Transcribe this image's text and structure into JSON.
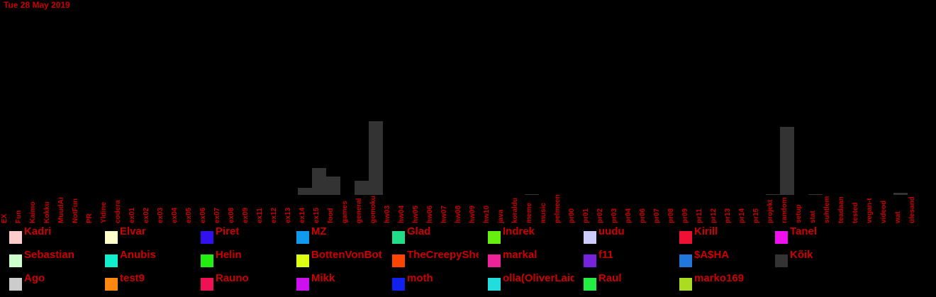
{
  "date": "Tue 28 May 2019",
  "chart_data": {
    "type": "bar",
    "stacked": true,
    "categories": [
      "EX",
      "Fun",
      "Kaimo",
      "Kokku",
      "MuudAi",
      "NotFun",
      "PR",
      "Yldine",
      "codera",
      "ex01",
      "ex02",
      "ex03",
      "ex04",
      "ex05",
      "ex06",
      "ex07",
      "ex08",
      "ex09",
      "ex11",
      "ex12",
      "ex13",
      "ex14",
      "ex15",
      "food",
      "games",
      "general",
      "gomoku",
      "hw03",
      "hw04",
      "hw05",
      "hw06",
      "hw07",
      "hw08",
      "hw09",
      "hw10",
      "java",
      "koraldu",
      "meme",
      "music",
      "pelmeen",
      "pr00",
      "pr01",
      "pr02",
      "pr03",
      "pr04",
      "pr06",
      "pr07",
      "pr08",
      "pr09",
      "pr11",
      "pr12",
      "pr13",
      "pr14",
      "pr15",
      "projekt",
      "random",
      "setup",
      "stat",
      "suhtlem",
      "teadaan",
      "tested",
      "vegan-t",
      "videod",
      "wat",
      "ülesand"
    ],
    "series": [
      {
        "name": "Kõik",
        "color": "#333333",
        "values": [
          0,
          0,
          0,
          0,
          0,
          0,
          0,
          0,
          0,
          0,
          0,
          0,
          0,
          0,
          0,
          0,
          0,
          0,
          0,
          0,
          0,
          10,
          38,
          26,
          0,
          20,
          104,
          0,
          0,
          0,
          0,
          0,
          0,
          0,
          0,
          0,
          0,
          1,
          0,
          0,
          0,
          0,
          0,
          0,
          0,
          0,
          0,
          0,
          0,
          0,
          0,
          0,
          0,
          0,
          1,
          96,
          0,
          1,
          0,
          0,
          0,
          0,
          0,
          3,
          0
        ]
      }
    ],
    "ylim": [
      0,
      115
    ]
  },
  "legend": [
    {
      "name": "Kadri",
      "color": "#ffcccc"
    },
    {
      "name": "Elvar",
      "color": "#ffffcc"
    },
    {
      "name": "Piret",
      "color": "#3311ee"
    },
    {
      "name": "MZ",
      "color": "#1199ee"
    },
    {
      "name": "Glad",
      "color": "#22dd88"
    },
    {
      "name": "Indrek",
      "color": "#66ee11"
    },
    {
      "name": "uudu",
      "color": "#ccccff"
    },
    {
      "name": "Kirill",
      "color": "#ee1133"
    },
    {
      "name": "Tanel",
      "color": "#ee11ee"
    },
    {
      "name": "Sebastian",
      "color": "#ccffcc"
    },
    {
      "name": "Anubis",
      "color": "#11eecc"
    },
    {
      "name": "Helin",
      "color": "#22ee11"
    },
    {
      "name": "BottenVonBot",
      "color": "#ddff11"
    },
    {
      "name": "TheCreepySheep",
      "color": "#ff4400"
    },
    {
      "name": "markal",
      "color": "#ee2299"
    },
    {
      "name": "f11",
      "color": "#7722dd"
    },
    {
      "name": "$A$HA",
      "color": "#2277dd"
    },
    {
      "name": "Kõik",
      "color": "#333333"
    },
    {
      "name": "Ago",
      "color": "#cccccc"
    },
    {
      "name": "test9",
      "color": "#ff8811"
    },
    {
      "name": "Rauno",
      "color": "#ee1155"
    },
    {
      "name": "Mikk",
      "color": "#cc11ee"
    },
    {
      "name": "moth",
      "color": "#1122ee"
    },
    {
      "name": "olla(OliverLaidre)",
      "color": "#22dddd"
    },
    {
      "name": "Raul",
      "color": "#22ee44"
    },
    {
      "name": "marko169",
      "color": "#aadd22"
    }
  ]
}
